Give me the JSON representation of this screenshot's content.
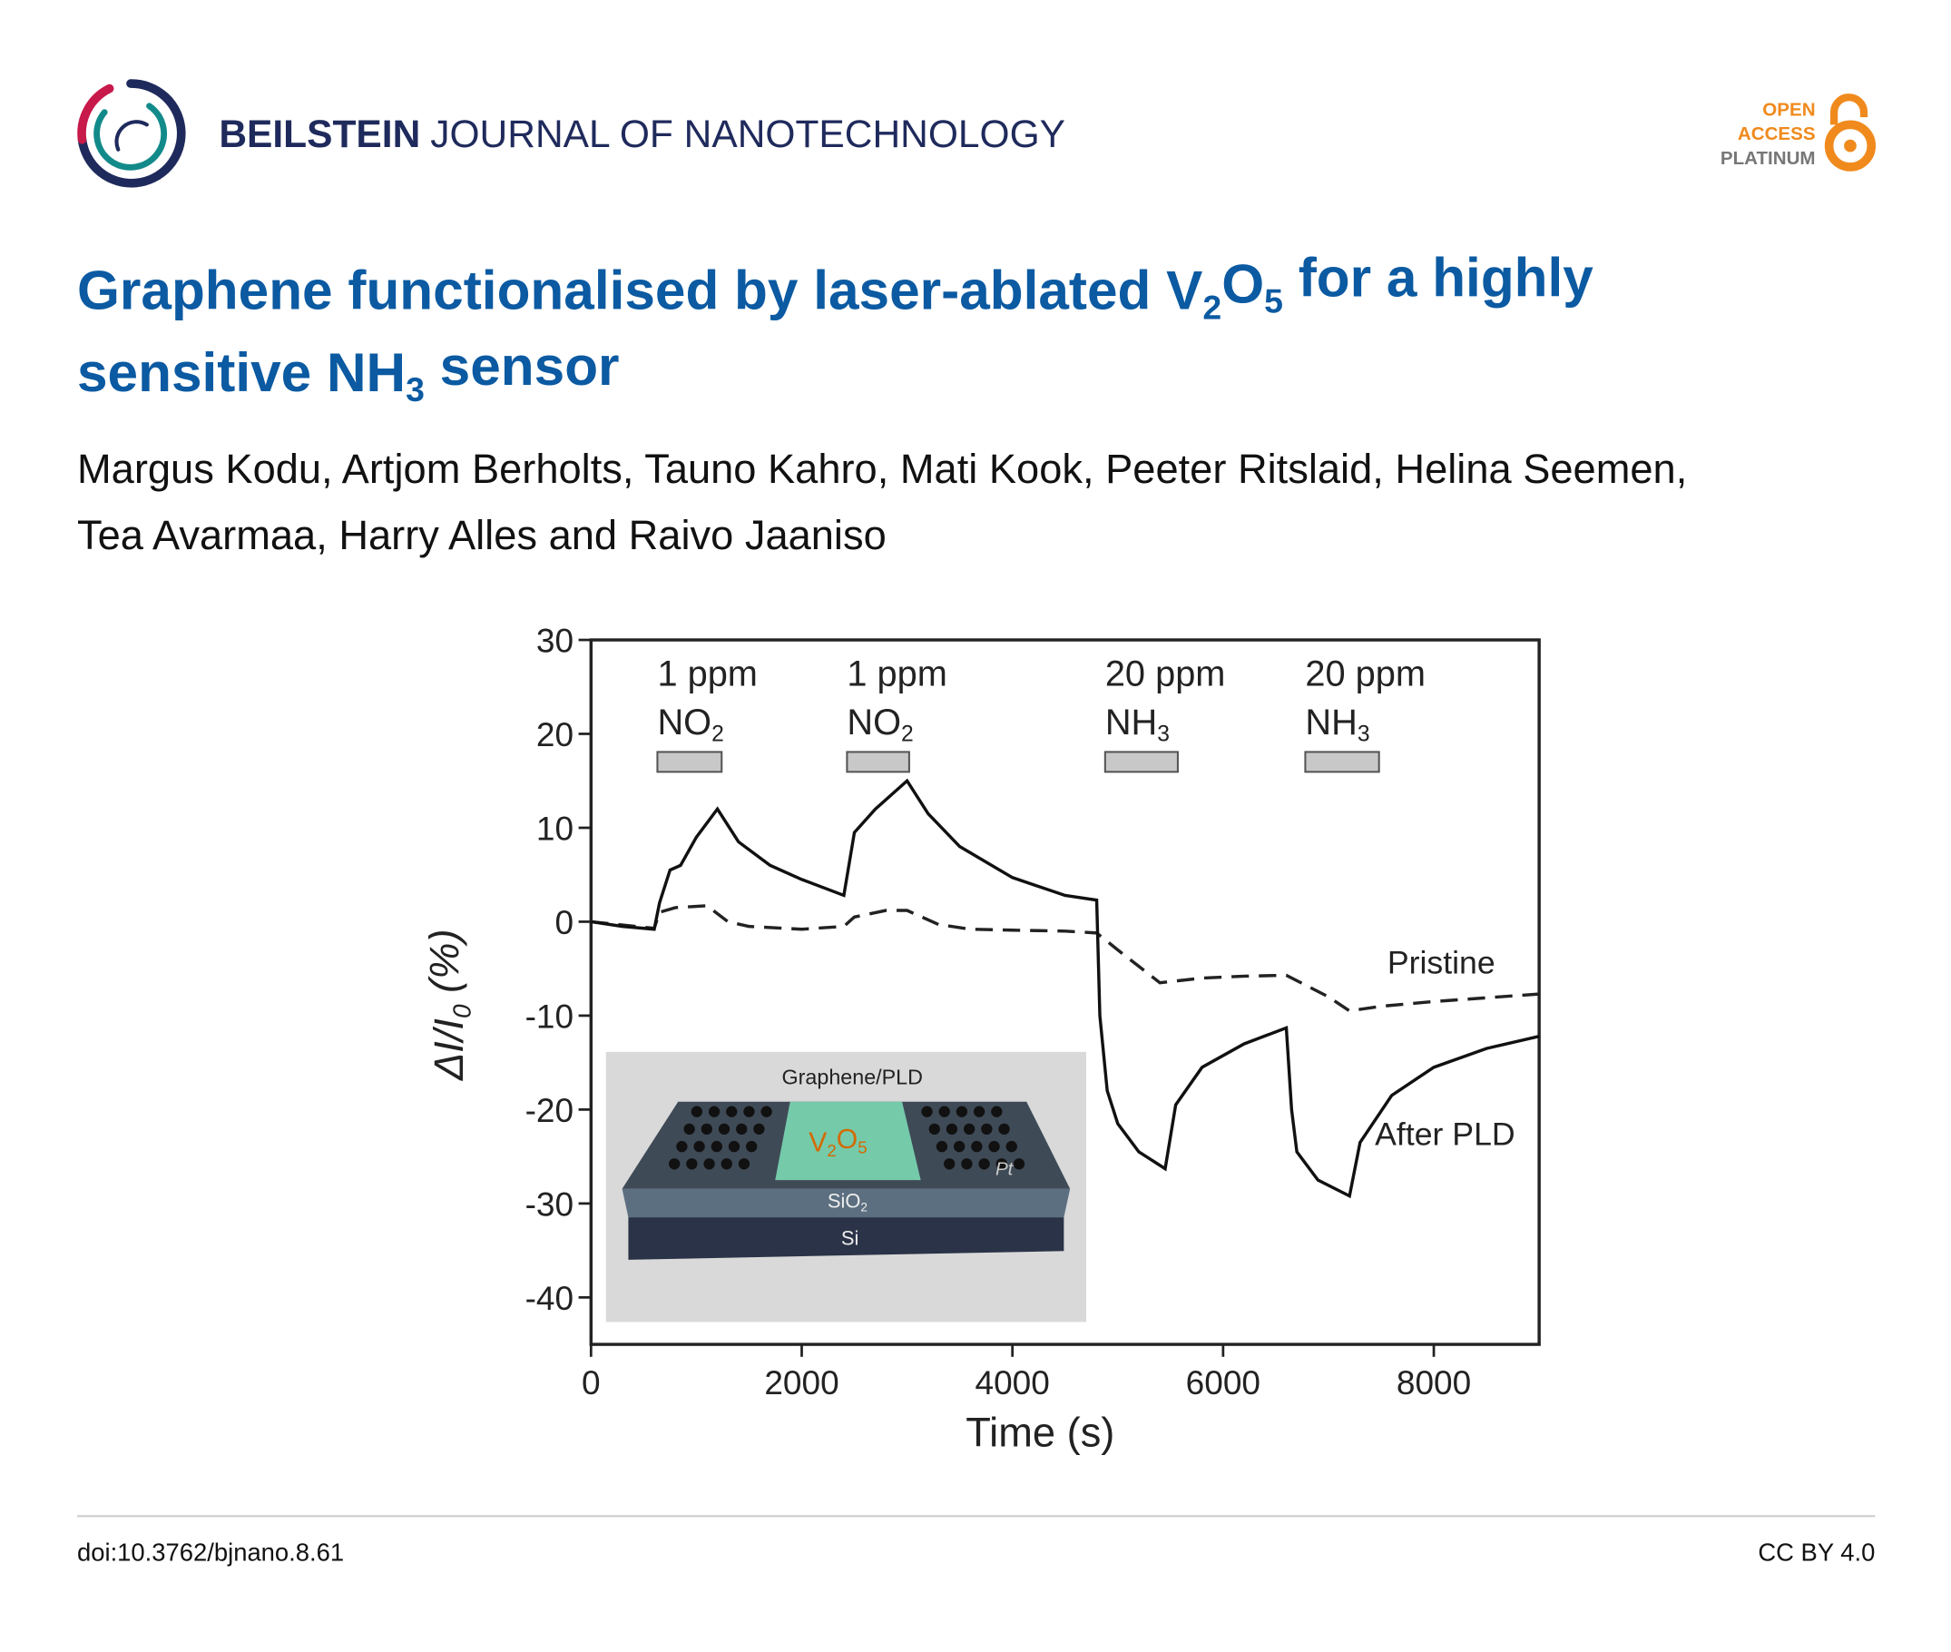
{
  "header": {
    "brand": "BEILSTEIN",
    "journal": "JOURNAL OF NANOTECHNOLOGY",
    "badge": [
      "OPEN",
      "ACCESS",
      "PLATINUM"
    ]
  },
  "title": [
    [
      "Graphene functionalised by laser-ablated V",
      "2",
      "O",
      "5",
      " for a highly"
    ],
    [
      "sensitive NH",
      "3",
      " sensor"
    ]
  ],
  "authors": [
    "Margus Kodu, Artjom Berholts, Tauno Kahro, Mati Kook, Peeter Ritslaid, Helina Seemen,",
    "Tea Avarmaa, Harry Alles and Raivo Jaaniso"
  ],
  "chart_data": {
    "type": "line",
    "x_label": "Time (s)",
    "y_label": [
      "ΔI/I",
      "0",
      " (%)"
    ],
    "xlim": [
      0,
      9000
    ],
    "xticks": [
      0,
      2000,
      4000,
      6000,
      8000
    ],
    "ylim": [
      -45,
      30
    ],
    "yticks": [
      30,
      20,
      10,
      0,
      -10,
      -20,
      -30,
      -40
    ],
    "series": [
      {
        "name": "Pristine",
        "color": "#222222",
        "dash": true,
        "x": [
          0,
          600,
          650,
          800,
          1100,
          1300,
          1500,
          2000,
          2400,
          2500,
          2800,
          3000,
          3300,
          3600,
          4000,
          4500,
          4800,
          5000,
          5400,
          5800,
          6200,
          6600,
          7000,
          7200,
          7500,
          8000,
          9000
        ],
        "values": [
          0,
          -0.7,
          1,
          1.5,
          1.7,
          0,
          -0.5,
          -0.8,
          -0.5,
          0.5,
          1.2,
          1.2,
          -0.3,
          -0.8,
          -0.9,
          -1,
          -1.2,
          -3,
          -6.5,
          -6,
          -5.8,
          -5.7,
          -8,
          -9.5,
          -9,
          -8.5,
          -7.7
        ]
      },
      {
        "name": "After PLD",
        "color": "#111111",
        "dash": false,
        "x": [
          0,
          300,
          600,
          650,
          750,
          850,
          1000,
          1200,
          1400,
          1700,
          2000,
          2400,
          2500,
          2700,
          3000,
          3200,
          3500,
          4000,
          4500,
          4800,
          4830,
          4900,
          5000,
          5200,
          5450,
          5550,
          5800,
          6200,
          6600,
          6650,
          6700,
          6900,
          7200,
          7300,
          7600,
          8000,
          8500,
          9000
        ],
        "values": [
          0,
          -0.5,
          -0.8,
          2,
          5.5,
          6,
          9,
          12,
          8.5,
          6,
          4.5,
          2.8,
          9.5,
          12,
          15,
          11.5,
          8,
          4.7,
          2.8,
          2.3,
          -10,
          -18,
          -21.5,
          -24.5,
          -26.3,
          -19.5,
          -15.5,
          -13,
          -11.3,
          -20,
          -24.5,
          -27.5,
          -29.2,
          -23.5,
          -18.5,
          -15.5,
          -13.5,
          -12.2
        ]
      }
    ],
    "exposures": [
      {
        "label": "1 ppm",
        "gas": [
          "NO",
          "2"
        ],
        "start": 630,
        "end": 1240
      },
      {
        "label": "1 ppm",
        "gas": [
          "NO",
          "2"
        ],
        "start": 2430,
        "end": 3020
      },
      {
        "label": "20 ppm",
        "gas": [
          "NH",
          "3"
        ],
        "start": 4880,
        "end": 5570
      },
      {
        "label": "20 ppm",
        "gas": [
          "NH",
          "3"
        ],
        "start": 6780,
        "end": 7480
      }
    ],
    "inset": {
      "top": "Graphene/PLD",
      "film": [
        "V",
        "2",
        "O",
        "5"
      ],
      "electrode": "Pt",
      "oxide": [
        "SiO",
        "2"
      ],
      "substrate": "Si"
    }
  },
  "footer": {
    "doi": "doi:10.3762/bjnano.8.61",
    "license": "CC BY 4.0"
  }
}
